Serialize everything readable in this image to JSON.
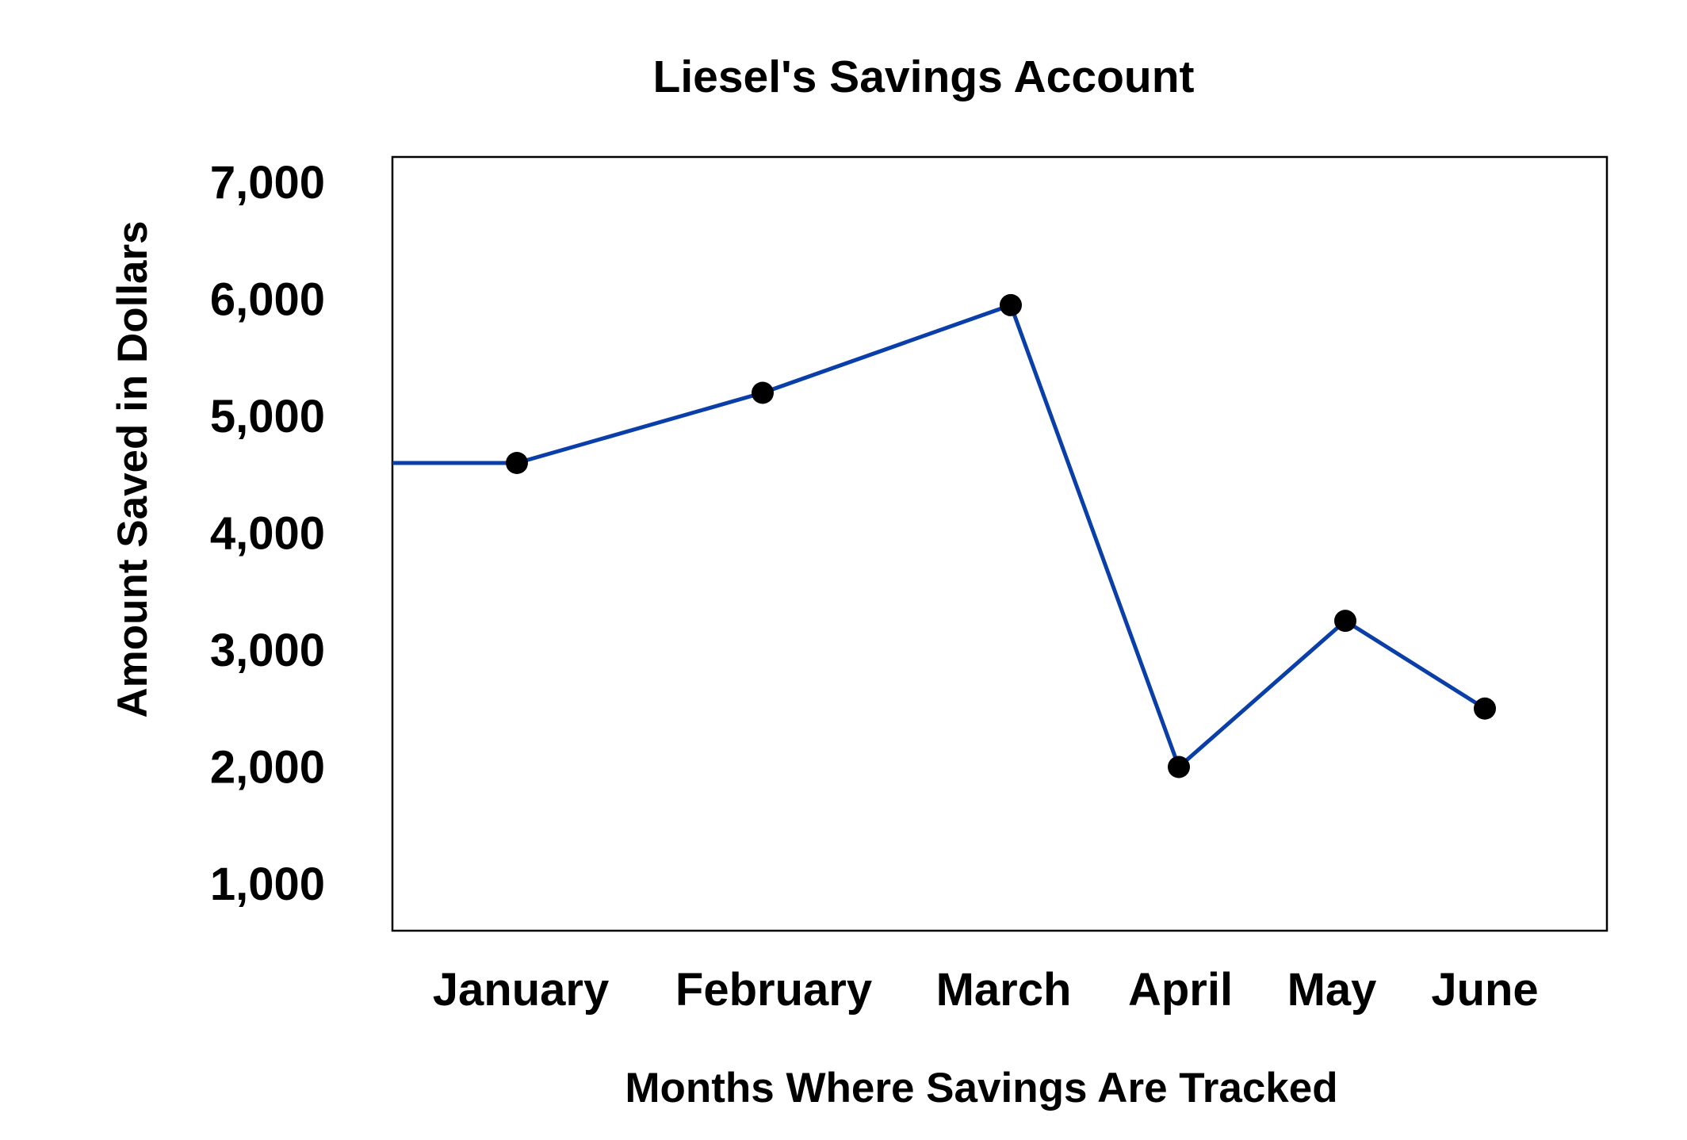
{
  "chart_data": {
    "type": "line",
    "title": "Liesel's Savings Account",
    "xlabel": "Months Where Savings Are Tracked",
    "ylabel": "Amount Saved in Dollars",
    "categories": [
      "January",
      "February",
      "March",
      "April",
      "May",
      "June"
    ],
    "series": [
      {
        "values": [
          4600,
          5200,
          5950,
          2000,
          3250,
          2500
        ],
        "color": "#0a3ea8",
        "marker_color": "#000000"
      }
    ],
    "ylim": [
      600,
      7300
    ],
    "yticks": [
      1000,
      2000,
      3000,
      4000,
      5000,
      6000,
      7000
    ],
    "ytick_labels": [
      "1,000",
      "2,000",
      "3,000",
      "4,000",
      "5,000",
      "6,000",
      "7,000"
    ],
    "grid": false,
    "legend": "none"
  }
}
